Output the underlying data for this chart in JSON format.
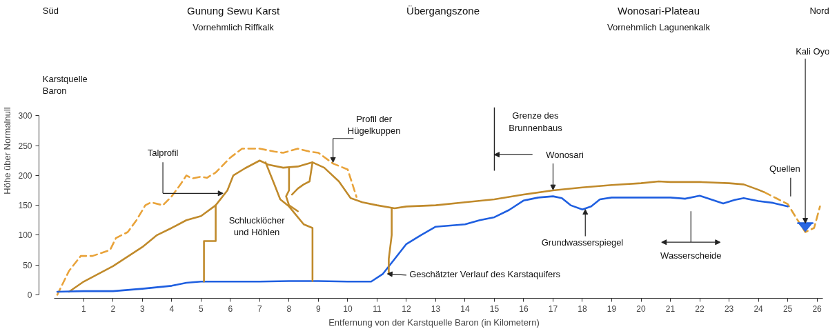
{
  "chart_data": {
    "type": "line",
    "xlabel": "Entfernung von der Karstquelle Baron (in Kilometern)",
    "ylabel": "Höhe über Normalnull",
    "xlim": [
      0,
      26.2
    ],
    "xticks": [
      1,
      2,
      3,
      4,
      5,
      6,
      7,
      8,
      9,
      10,
      11,
      12,
      13,
      14,
      15,
      16,
      17,
      18,
      19,
      20,
      21,
      22,
      23,
      24,
      25,
      26
    ],
    "ylim": [
      0,
      300
    ],
    "yticks": [
      0,
      50,
      100,
      150,
      200,
      250,
      300
    ],
    "grid": false,
    "marker": "none",
    "series": [
      {
        "color": "#e9a33a",
        "line_style": "dashed",
        "x": [
          0.1,
          0.5,
          0.9,
          1.3,
          1.9,
          2.1,
          2.5,
          2.8,
          3.1,
          3.3,
          3.7,
          4.0,
          4.3,
          4.5,
          4.7,
          5.0,
          5.2,
          5.5,
          6.0,
          6.4,
          7.0,
          7.5,
          7.8,
          8.3,
          8.7,
          9.0,
          9.5,
          10.0,
          10.3
        ],
        "values": [
          0,
          40,
          65,
          65,
          75,
          95,
          105,
          125,
          150,
          155,
          150,
          165,
          185,
          200,
          195,
          198,
          196,
          205,
          230,
          245,
          245,
          240,
          238,
          245,
          240,
          238,
          220,
          210,
          164
        ]
      },
      {
        "color": "#c08a2b",
        "x": [
          0.5,
          1,
          2,
          3,
          3.5,
          4,
          4.5,
          5,
          5.5,
          5.9,
          6.1,
          6.5,
          7,
          7.3,
          7.8,
          8.3,
          8.8,
          9.2,
          9.7,
          10.1,
          10.5,
          11,
          11.6,
          12,
          13,
          14,
          15,
          16,
          17,
          18,
          19,
          20,
          20.6,
          21,
          22,
          23,
          23.5,
          24,
          24.2
        ],
        "values": [
          5,
          22,
          48,
          80,
          100,
          112,
          125,
          132,
          150,
          175,
          200,
          212,
          225,
          218,
          213,
          215,
          222,
          213,
          190,
          162,
          155,
          150,
          145,
          148,
          150,
          155,
          160,
          168,
          175,
          180,
          184,
          187,
          190,
          189,
          189,
          187,
          185,
          176,
          172
        ]
      },
      {
        "color": "#e0a035",
        "line_style": "dashed",
        "x": [
          24.2,
          24.6,
          25,
          25.3,
          25.6,
          25.9,
          26.1
        ],
        "values": [
          172,
          162,
          152,
          128,
          105,
          112,
          148
        ]
      },
      {
        "color": "#1f5fe0",
        "x": [
          0.1,
          1,
          2,
          3,
          4,
          4.5,
          5,
          6,
          7,
          8,
          9,
          10,
          10.8,
          11.2,
          11.6,
          12,
          12.5,
          13,
          14,
          14.5,
          15,
          15.5,
          16,
          16.5,
          17,
          17.3,
          17.6,
          18,
          18.3,
          18.6,
          19,
          20,
          21,
          21.5,
          22,
          22.5,
          22.8,
          23.2,
          23.5,
          24,
          24.5,
          25
        ],
        "values": [
          5,
          6,
          6,
          10,
          15,
          20,
          22,
          22,
          22,
          23,
          23,
          22,
          22,
          35,
          60,
          85,
          100,
          114,
          118,
          125,
          130,
          142,
          158,
          163,
          165,
          162,
          150,
          143,
          148,
          160,
          163,
          163,
          163,
          161,
          166,
          158,
          153,
          159,
          162,
          157,
          154,
          148
        ]
      },
      {
        "color": "#1f5fe0",
        "x": [
          25.35,
          25.6,
          25.85
        ],
        "values": [
          120,
          120,
          120
        ],
        "lower": [
          120,
          105,
          120
        ],
        "upper": [
          120,
          120,
          120
        ]
      },
      {
        "color": "#c08a2b",
        "x": [
          5.5,
          5.5,
          5.1,
          5.1
        ],
        "values": [
          150,
          90,
          90,
          22
        ]
      },
      {
        "color": "#c08a2b",
        "x": [
          7.2,
          7.5,
          7.7,
          8.0,
          8.3,
          8.5,
          8.8,
          8.8
        ],
        "values": [
          222,
          185,
          160,
          148,
          130,
          118,
          112,
          23
        ]
      },
      {
        "color": "#c08a2b",
        "x": [
          8.0,
          8.0,
          7.9,
          8.0,
          8.3
        ],
        "values": [
          213,
          175,
          165,
          150,
          140
        ]
      },
      {
        "color": "#c08a2b",
        "x": [
          8.8,
          8.7,
          8.5,
          8.3,
          8.1
        ],
        "values": [
          222,
          190,
          185,
          178,
          168
        ]
      },
      {
        "color": "#c08a2b",
        "x": [
          11.5,
          11.5,
          11.4,
          11.4
        ],
        "values": [
          145,
          100,
          60,
          35
        ]
      }
    ],
    "annotations": [
      "Süd",
      "Gunung Sewu Karst",
      "Vornehmlich Riffkalk",
      "Übergangszone",
      "Wonosari-Plateau",
      "Vornehmlich Lagunenkalk",
      "Nord",
      "Karstquelle\nBaron",
      "Schlucklöcher\nund Höhlen",
      "Talprofil",
      "Profil der\nHügelkuppen",
      {
        "text": "Wonosari",
        "x": 17,
        "y": 176
      },
      {
        "text": "Grundwasserspiegel",
        "x": 18.1,
        "y": 143
      },
      "Wasserscheide",
      {
        "text": "Geschätzter Verlauf des Karstaquifers",
        "x": 11.35,
        "y": 35
      },
      "Quellen",
      {
        "text": "Kali Oyo",
        "x": 25.6,
        "y": 120
      }
    ],
    "ref_lines": [
      {
        "axis": "x",
        "value": 15,
        "label": "Grenze des\nBrunnenbaus"
      }
    ]
  }
}
